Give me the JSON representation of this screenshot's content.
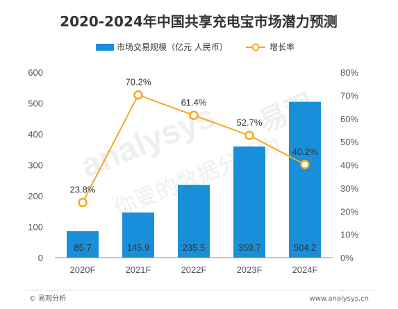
{
  "chart_data": {
    "type": "bar",
    "title": "2020-2024年中国共享充电宝市场潜力预测",
    "categories": [
      "2020F",
      "2021F",
      "2022F",
      "2023F",
      "2024F"
    ],
    "series": [
      {
        "name": "市场交易规模（亿元 人民币）",
        "type": "bar",
        "axis": "left",
        "values": [
          85.7,
          145.9,
          235.5,
          359.7,
          504.2
        ],
        "labels": [
          "85.7",
          "145.9",
          "235.5",
          "359.7",
          "504.2"
        ],
        "color": "#1A8FD9"
      },
      {
        "name": "增长率",
        "type": "line",
        "axis": "right",
        "values": [
          23.8,
          70.2,
          61.4,
          52.7,
          40.2
        ],
        "labels": [
          "23.8%",
          "70.2%",
          "61.4%",
          "52.7%",
          "40.2%"
        ],
        "color": "#F5A623"
      }
    ],
    "y_left": {
      "range": [
        0,
        600
      ],
      "ticks": [
        0,
        100,
        200,
        300,
        400,
        500,
        600
      ],
      "tick_labels": [
        "0",
        "100",
        "200",
        "300",
        "400",
        "500",
        "600"
      ]
    },
    "y_right": {
      "range": [
        0,
        80
      ],
      "ticks": [
        0,
        10,
        20,
        30,
        40,
        50,
        60,
        70,
        80
      ],
      "tick_labels": [
        "0%",
        "10%",
        "20%",
        "30%",
        "40%",
        "50%",
        "60%",
        "70%",
        "80%"
      ]
    },
    "legend_position": "top-center",
    "grid": false
  },
  "watermark": {
    "brand_latin": "analysys",
    "brand_cn": "易观",
    "slogan": "你要的数据分析力"
  },
  "footer": {
    "left": "© 易观分析",
    "right": "www.analysys.cn"
  },
  "colors": {
    "bar": "#1A8FD9",
    "line": "#F5A623",
    "marker_fill": "#FFFFFF",
    "axis": "#888888",
    "footer_rule": "#CCCCCC"
  }
}
